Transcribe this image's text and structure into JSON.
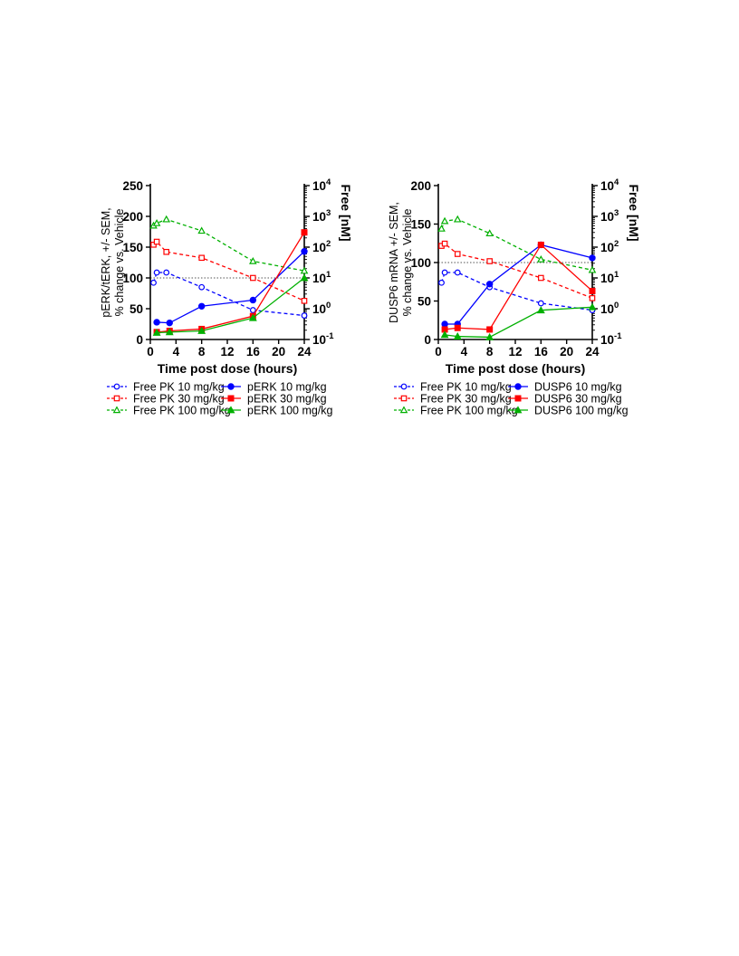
{
  "chart_data": [
    {
      "type": "line",
      "xlabel": "Time post dose (hours)",
      "ylabel": [
        "pERK/tERK, +/- SEM,",
        "% change vs. Vehicle"
      ],
      "y2label": "Free [nM]",
      "xlim": [
        0,
        24
      ],
      "xticks": [
        "0",
        "4",
        "8",
        "12",
        "16",
        "20",
        "24"
      ],
      "ylim": [
        0,
        250
      ],
      "yticks": [
        "0",
        "50",
        "100",
        "150",
        "200",
        "250"
      ],
      "y2lim_log10": [
        -1,
        4
      ],
      "y2_scale": "log",
      "y2ticks": [
        {
          "base": "10",
          "exp": "-1"
        },
        {
          "base": "10",
          "exp": "0"
        },
        {
          "base": "10",
          "exp": "1"
        },
        {
          "base": "10",
          "exp": "2"
        },
        {
          "base": "10",
          "exp": "3"
        },
        {
          "base": "10",
          "exp": "4"
        }
      ],
      "reference_line": 100,
      "legend_position": "below",
      "series": [
        {
          "name": "Free PK 10 mg/kg",
          "axis": "right",
          "color": "#0000ff",
          "line": "dashed",
          "marker": "circle-open",
          "x": [
            0.5,
            1,
            2.5,
            8,
            16,
            24
          ],
          "y": [
            7,
            15,
            15,
            5,
            0.9,
            0.6
          ]
        },
        {
          "name": "Free PK 30 mg/kg",
          "axis": "right",
          "color": "#ff0000",
          "line": "dashed",
          "marker": "square-open",
          "x": [
            0.5,
            1,
            2.5,
            8,
            16,
            24
          ],
          "y": [
            120,
            150,
            70,
            45,
            10,
            1.8
          ]
        },
        {
          "name": "Free PK 100 mg/kg",
          "axis": "right",
          "color": "#00b000",
          "line": "dashed",
          "marker": "triangle-open",
          "x": [
            0.5,
            1,
            2.5,
            8,
            16,
            24
          ],
          "y": [
            500,
            600,
            800,
            340,
            35,
            17
          ]
        },
        {
          "name": "pERK 10 mg/kg",
          "axis": "left",
          "color": "#0000ff",
          "line": "solid",
          "marker": "circle-filled",
          "x": [
            1,
            3,
            8,
            16,
            24
          ],
          "y": [
            28,
            27,
            54,
            64,
            143
          ]
        },
        {
          "name": "pERK 30 mg/kg",
          "axis": "left",
          "color": "#ff0000",
          "line": "solid",
          "marker": "square-filled",
          "x": [
            1,
            3,
            8,
            16,
            24
          ],
          "y": [
            12,
            14,
            17,
            38,
            174
          ]
        },
        {
          "name": "pERK 100 mg/kg",
          "axis": "left",
          "color": "#00b000",
          "line": "solid",
          "marker": "triangle-filled",
          "x": [
            1,
            3,
            8,
            16,
            24
          ],
          "y": [
            11,
            12,
            14,
            35,
            100
          ]
        }
      ]
    },
    {
      "type": "line",
      "xlabel": "Time post dose (hours)",
      "ylabel": [
        "DUSP6 mRNA +/- SEM,",
        "% change vs. Vehicle"
      ],
      "y2label": "Free [nM]",
      "xlim": [
        0,
        24
      ],
      "xticks": [
        "0",
        "4",
        "8",
        "12",
        "16",
        "20",
        "24"
      ],
      "ylim": [
        0,
        200
      ],
      "yticks": [
        "0",
        "50",
        "100",
        "150",
        "200"
      ],
      "y2lim_log10": [
        -1,
        4
      ],
      "y2_scale": "log",
      "y2ticks": [
        {
          "base": "10",
          "exp": "-1"
        },
        {
          "base": "10",
          "exp": "0"
        },
        {
          "base": "10",
          "exp": "1"
        },
        {
          "base": "10",
          "exp": "2"
        },
        {
          "base": "10",
          "exp": "3"
        },
        {
          "base": "10",
          "exp": "4"
        }
      ],
      "reference_line": 100,
      "legend_position": "below",
      "series": [
        {
          "name": "Free PK 10 mg/kg",
          "axis": "right",
          "color": "#0000ff",
          "line": "dashed",
          "marker": "circle-open",
          "x": [
            0.5,
            1,
            3,
            8,
            16,
            24
          ],
          "y": [
            7,
            15,
            15,
            5,
            1.5,
            0.9
          ]
        },
        {
          "name": "Free PK 30 mg/kg",
          "axis": "right",
          "color": "#ff0000",
          "line": "dashed",
          "marker": "square-open",
          "x": [
            0.5,
            1,
            3,
            8,
            16,
            24
          ],
          "y": [
            110,
            130,
            60,
            35,
            10,
            2.2
          ]
        },
        {
          "name": "Free PK 100 mg/kg",
          "axis": "right",
          "color": "#00b000",
          "line": "dashed",
          "marker": "triangle-open",
          "x": [
            0.5,
            1,
            3,
            8,
            16,
            24
          ],
          "y": [
            400,
            700,
            800,
            280,
            40,
            18
          ]
        },
        {
          "name": "DUSP6 10 mg/kg",
          "axis": "left",
          "color": "#0000ff",
          "line": "solid",
          "marker": "circle-filled",
          "x": [
            1,
            3,
            8,
            16,
            24
          ],
          "y": [
            20,
            20,
            72,
            123,
            106
          ]
        },
        {
          "name": "DUSP6 30 mg/kg",
          "axis": "left",
          "color": "#ff0000",
          "line": "solid",
          "marker": "square-filled",
          "x": [
            1,
            3,
            8,
            16,
            24
          ],
          "y": [
            13,
            15,
            13,
            123,
            63
          ]
        },
        {
          "name": "DUSP6 100 mg/kg",
          "axis": "left",
          "color": "#00b000",
          "line": "solid",
          "marker": "triangle-filled",
          "x": [
            1,
            3,
            8,
            16,
            24
          ],
          "y": [
            6,
            4,
            3,
            38,
            42
          ]
        }
      ]
    }
  ]
}
